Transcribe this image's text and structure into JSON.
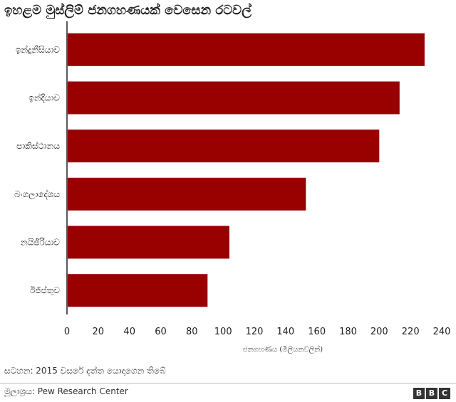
{
  "title": "ඉහළම මුස්ලිම් ජනගහණයක් වෙසෙන රටවල්",
  "note": "සටහන: 2015 වසරේ දත්ත යොදාගෙන තිබේ",
  "source": "මූලාශ්‍රය: Pew Research Center",
  "logo": [
    "B",
    "B",
    "C"
  ],
  "colors": {
    "bar": "#990000",
    "axis": "#222222"
  },
  "chart_data": {
    "type": "bar",
    "orientation": "horizontal",
    "categories": [
      "ඉන්දුනීසියාව",
      "ඉන්දියාව",
      "පාකිස්ථානය",
      "බංගලාදේශය",
      "නයිජීරියාව",
      "ඊජිප්තුව"
    ],
    "values": [
      229,
      213,
      200,
      153,
      104,
      90
    ],
    "xlabel": "ජනගහණය (මිලියනවලින්)",
    "ylabel": "",
    "xlim": [
      0,
      240
    ],
    "xticks": [
      0,
      20,
      40,
      60,
      80,
      100,
      120,
      140,
      160,
      180,
      200,
      220,
      240
    ],
    "grid": false
  }
}
